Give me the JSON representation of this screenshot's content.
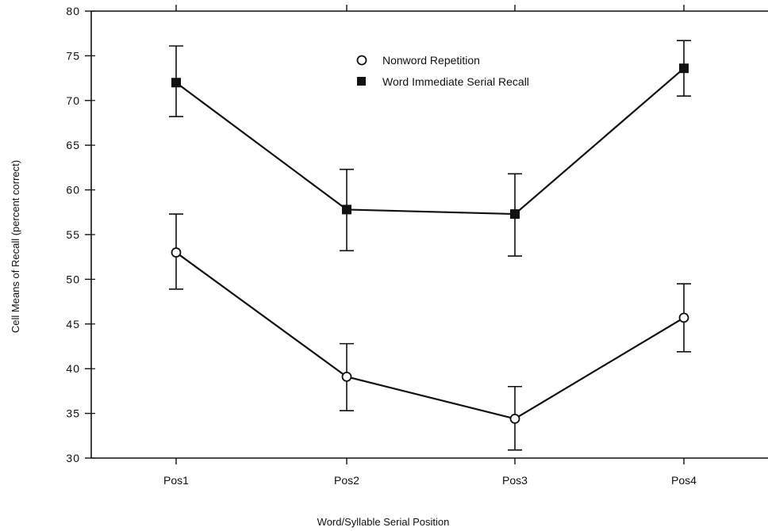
{
  "chart_data": {
    "type": "line",
    "title": "",
    "xlabel": "Word/Syllable Serial Position",
    "ylabel": "Cell Means of Recall (percent correct)",
    "categories": [
      "Pos1",
      "Pos2",
      "Pos3",
      "Pos4"
    ],
    "ylim": [
      30,
      80
    ],
    "yticks": [
      30,
      35,
      40,
      45,
      50,
      55,
      60,
      65,
      70,
      75,
      80
    ],
    "grid": false,
    "legend_position": "top-center",
    "series": [
      {
        "name": "Nonword Repetition",
        "marker": "open-circle",
        "values": [
          53.0,
          39.1,
          34.4,
          45.7
        ],
        "error_low": [
          48.9,
          35.3,
          30.9,
          41.9
        ],
        "error_high": [
          57.3,
          42.8,
          38.0,
          49.5
        ]
      },
      {
        "name": "Word Immediate Serial Recall",
        "marker": "filled-square",
        "values": [
          72.0,
          57.8,
          57.3,
          73.6
        ],
        "error_low": [
          68.2,
          53.2,
          52.6,
          70.5
        ],
        "error_high": [
          76.1,
          62.3,
          61.8,
          76.7
        ]
      }
    ]
  }
}
